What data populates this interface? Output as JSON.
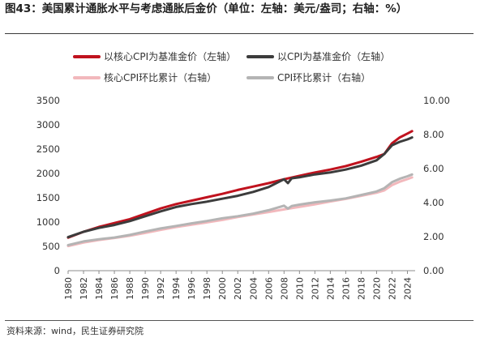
{
  "title": "图43：美国累计通胀水平与考虑通胀后金价（单位：左轴：美元/盎司；右轴：%）",
  "source": "资料来源：wind，民生证券研究院",
  "chart_data": {
    "type": "line",
    "x_ticks": [
      "1980",
      "1982",
      "1984",
      "1986",
      "1988",
      "1990",
      "1992",
      "1994",
      "1996",
      "1998",
      "2000",
      "2002",
      "2004",
      "2006",
      "2008",
      "2010",
      "2012",
      "2014",
      "2016",
      "2018",
      "2020",
      "2022",
      "2024"
    ],
    "y_left_ticks": [
      "0",
      "500",
      "1000",
      "1500",
      "2000",
      "2500",
      "3000",
      "3500"
    ],
    "y_right_ticks": [
      "0.00",
      "2.00",
      "4.00",
      "6.00",
      "8.00",
      "10.00"
    ],
    "ylim_left": [
      0,
      3500
    ],
    "ylim_right": [
      0,
      10
    ],
    "xlim": [
      1980,
      2025
    ],
    "legend_position": "top",
    "series": [
      {
        "name": "以核心CPI为基准金价（左轴）",
        "axis": "left",
        "color": "#c0121e",
        "x": [
          1980,
          1982,
          1984,
          1986,
          1988,
          1990,
          1992,
          1994,
          1996,
          1998,
          2000,
          2002,
          2004,
          2006,
          2008,
          2010,
          2012,
          2014,
          2016,
          2018,
          2020,
          2021,
          2022,
          2023,
          2024,
          2024.6
        ],
        "values": [
          680,
          800,
          900,
          980,
          1060,
          1170,
          1280,
          1370,
          1440,
          1510,
          1580,
          1660,
          1730,
          1800,
          1880,
          1950,
          2020,
          2080,
          2150,
          2240,
          2340,
          2400,
          2620,
          2740,
          2820,
          2870
        ]
      },
      {
        "name": "以CPI为基准金价（左轴）",
        "axis": "left",
        "color": "#3c3c3c",
        "x": [
          1980,
          1982,
          1984,
          1986,
          1988,
          1990,
          1992,
          1994,
          1996,
          1998,
          2000,
          2002,
          2004,
          2006,
          2008,
          2008.5,
          2009,
          2010,
          2012,
          2014,
          2016,
          2018,
          2020,
          2021,
          2022,
          2023,
          2024,
          2024.6
        ],
        "values": [
          690,
          800,
          880,
          940,
          1020,
          1120,
          1220,
          1310,
          1370,
          1420,
          1480,
          1540,
          1620,
          1720,
          1880,
          1800,
          1900,
          1920,
          1980,
          2020,
          2080,
          2160,
          2270,
          2400,
          2580,
          2650,
          2700,
          2740
        ]
      },
      {
        "name": "核心CPI环比累计（右轴）",
        "axis": "right",
        "color": "#f2b8bc",
        "x": [
          1980,
          1982,
          1984,
          1986,
          1988,
          1990,
          1992,
          1994,
          1996,
          1998,
          2000,
          2002,
          2004,
          2006,
          2008,
          2010,
          2012,
          2014,
          2016,
          2018,
          2020,
          2021,
          2022,
          2023,
          2024,
          2024.6
        ],
        "values": [
          1.45,
          1.65,
          1.8,
          1.92,
          2.05,
          2.22,
          2.4,
          2.56,
          2.7,
          2.84,
          2.98,
          3.15,
          3.3,
          3.45,
          3.6,
          3.75,
          3.9,
          4.06,
          4.22,
          4.4,
          4.58,
          4.72,
          5.03,
          5.23,
          5.38,
          5.48
        ]
      },
      {
        "name": "CPI环比累计（右轴）",
        "axis": "right",
        "color": "#b4b4b4",
        "x": [
          1980,
          1982,
          1984,
          1986,
          1988,
          1990,
          1992,
          1994,
          1996,
          1998,
          2000,
          2002,
          2004,
          2006,
          2008,
          2008.5,
          2009,
          2010,
          2012,
          2014,
          2016,
          2018,
          2020,
          2021,
          2022,
          2023,
          2024,
          2024.6
        ],
        "values": [
          1.5,
          1.72,
          1.85,
          1.95,
          2.1,
          2.3,
          2.48,
          2.63,
          2.78,
          2.92,
          3.08,
          3.2,
          3.35,
          3.55,
          3.82,
          3.65,
          3.8,
          3.88,
          4.02,
          4.12,
          4.25,
          4.45,
          4.65,
          4.85,
          5.2,
          5.4,
          5.55,
          5.65
        ]
      }
    ]
  }
}
